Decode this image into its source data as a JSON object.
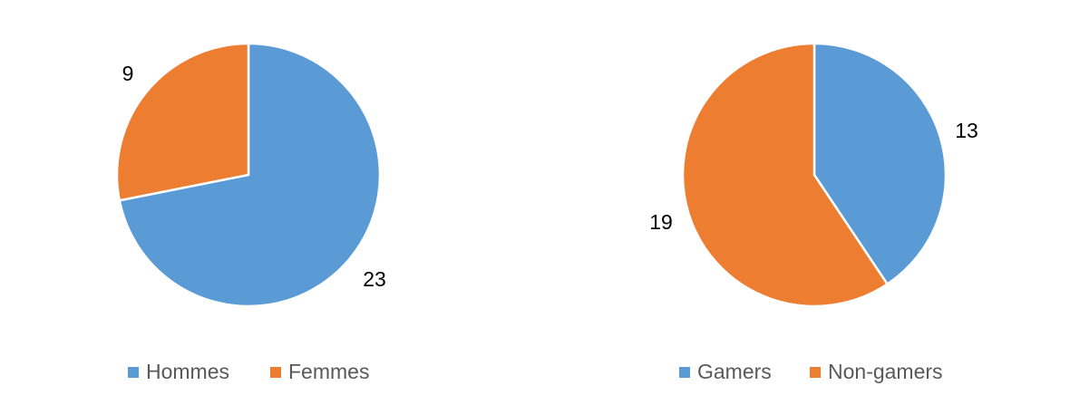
{
  "chart_data": [
    {
      "type": "pie",
      "categories": [
        "Hommes",
        "Femmes"
      ],
      "values": [
        23,
        9
      ],
      "colors": [
        "#5B9BD5",
        "#ED7D31"
      ],
      "legend": "bottom",
      "data_labels": [
        "23",
        "9"
      ]
    },
    {
      "type": "pie",
      "categories": [
        "Gamers",
        "Non-gamers"
      ],
      "values": [
        13,
        19
      ],
      "colors": [
        "#5B9BD5",
        "#ED7D31"
      ],
      "legend": "bottom",
      "data_labels": [
        "13",
        "19"
      ]
    }
  ]
}
